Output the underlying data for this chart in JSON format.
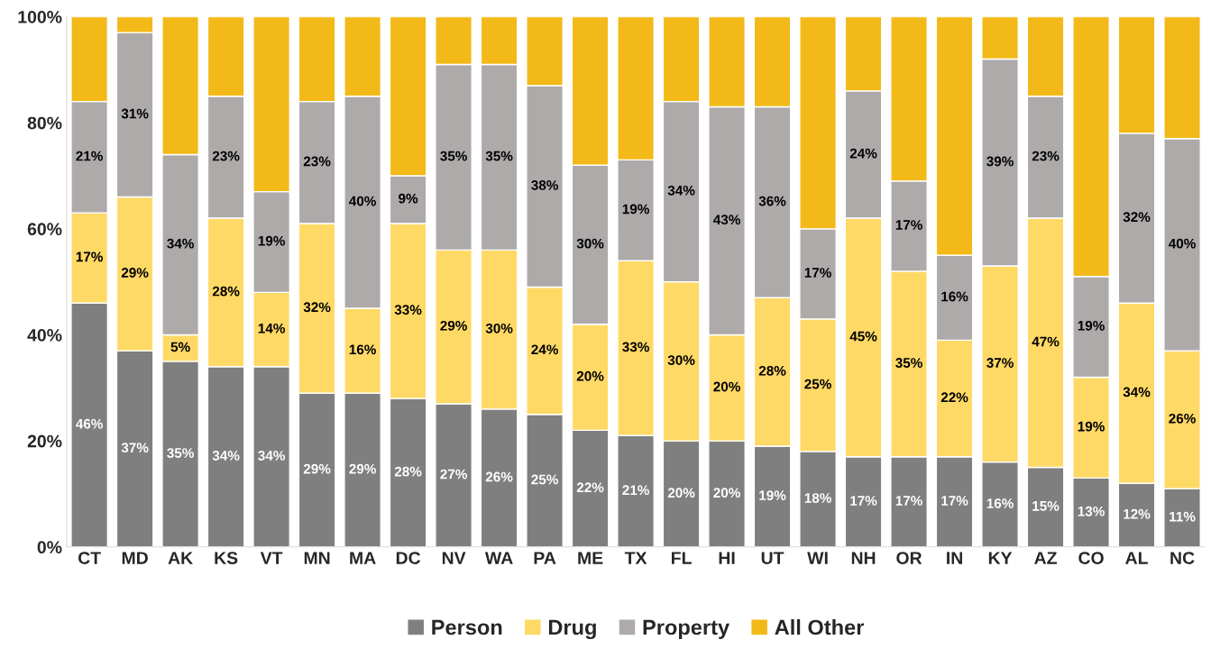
{
  "chart_data": {
    "type": "bar",
    "stacked": true,
    "categories": [
      "CT",
      "MD",
      "AK",
      "KS",
      "VT",
      "MN",
      "MA",
      "DC",
      "NV",
      "WA",
      "PA",
      "ME",
      "TX",
      "FL",
      "HI",
      "UT",
      "WI",
      "NH",
      "OR",
      "IN",
      "KY",
      "AZ",
      "CO",
      "AL",
      "NC"
    ],
    "series": [
      {
        "name": "Person",
        "color": "#7f7f7f",
        "values": [
          46,
          37,
          35,
          34,
          34,
          29,
          29,
          28,
          27,
          26,
          25,
          22,
          21,
          20,
          20,
          19,
          18,
          17,
          17,
          17,
          16,
          15,
          13,
          12,
          11
        ],
        "value_labels": [
          "46%",
          "37%",
          "35%",
          "34%",
          "34%",
          "29%",
          "29%",
          "28%",
          "27%",
          "26%",
          "25%",
          "22%",
          "21%",
          "20%",
          "20%",
          "19%",
          "18%",
          "17%",
          "17%",
          "17%",
          "16%",
          "15%",
          "13%",
          "12%",
          "11%"
        ]
      },
      {
        "name": "Drug",
        "color": "#ffd966",
        "values": [
          17,
          29,
          5,
          28,
          14,
          32,
          16,
          33,
          29,
          30,
          24,
          20,
          33,
          30,
          20,
          28,
          25,
          45,
          35,
          22,
          37,
          47,
          19,
          34,
          26
        ],
        "value_labels": [
          "17%",
          "29%",
          "5%",
          "28%",
          "14%",
          "32%",
          "16%",
          "33%",
          "29%",
          "30%",
          "24%",
          "20%",
          "33%",
          "30%",
          "20%",
          "28%",
          "25%",
          "45%",
          "35%",
          "22%",
          "37%",
          "47%",
          "19%",
          "34%",
          "26%"
        ]
      },
      {
        "name": "Property",
        "color": "#aeaaaa",
        "values": [
          21,
          31,
          34,
          23,
          19,
          23,
          40,
          9,
          35,
          35,
          38,
          30,
          19,
          34,
          43,
          36,
          17,
          24,
          17,
          16,
          39,
          23,
          19,
          32,
          40
        ],
        "value_labels": [
          "21%",
          "31%",
          "34%",
          "23%",
          "19%",
          "23%",
          "40%",
          "9%",
          "35%",
          "35%",
          "38%",
          "30%",
          "19%",
          "34%",
          "43%",
          "36%",
          "17%",
          "24%",
          "17%",
          "16%",
          "39%",
          "23%",
          "19%",
          "32%",
          "40%"
        ]
      },
      {
        "name": "All Other",
        "color": "#f2b918",
        "values": [
          16,
          3,
          26,
          15,
          33,
          16,
          15,
          30,
          9,
          9,
          13,
          28,
          27,
          16,
          17,
          17,
          40,
          14,
          31,
          45,
          8,
          15,
          49,
          22,
          23
        ]
      }
    ],
    "ylim": [
      0,
      100
    ],
    "yticks": [
      {
        "value": 0,
        "label": "0%"
      },
      {
        "value": 20,
        "label": "20%"
      },
      {
        "value": 40,
        "label": "40%"
      },
      {
        "value": 60,
        "label": "60%"
      },
      {
        "value": 80,
        "label": "80%"
      },
      {
        "value": 100,
        "label": "100%"
      }
    ],
    "grid": false,
    "legend": "bottom"
  }
}
